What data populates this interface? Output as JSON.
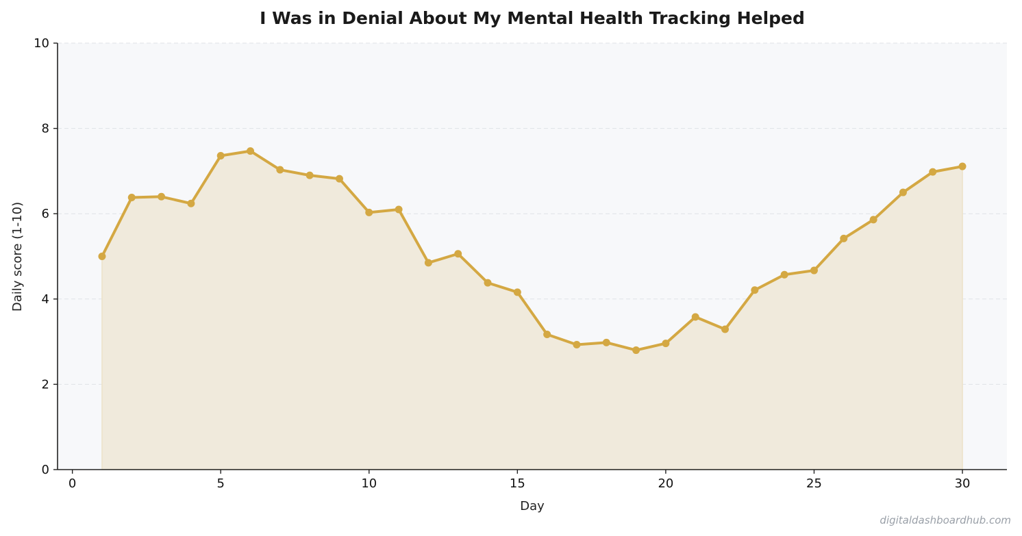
{
  "chart_data": {
    "type": "line",
    "title": "I Was in Denial About My Mental Health  Tracking Helped",
    "xlabel": "Day",
    "ylabel": "Daily score (1-10)",
    "xlim": [
      -0.5,
      31.5
    ],
    "ylim": [
      0,
      10
    ],
    "xticks": [
      0,
      5,
      10,
      15,
      20,
      25,
      30
    ],
    "yticks": [
      0,
      2,
      4,
      6,
      8,
      10
    ],
    "grid": "horizontal-dashed",
    "area_fill": true,
    "colors": {
      "line": "#D4A843",
      "fill": "#F0EADC",
      "plot_background": "#F7F8FA"
    },
    "x": [
      1,
      2,
      3,
      4,
      5,
      6,
      7,
      8,
      9,
      10,
      11,
      12,
      13,
      14,
      15,
      16,
      17,
      18,
      19,
      20,
      21,
      22,
      23,
      24,
      25,
      26,
      27,
      28,
      29,
      30
    ],
    "y": [
      5.0,
      6.38,
      6.4,
      6.24,
      7.36,
      7.47,
      7.03,
      6.9,
      6.82,
      6.03,
      6.1,
      4.85,
      5.06,
      4.38,
      4.16,
      3.17,
      2.93,
      2.98,
      2.8,
      2.96,
      3.58,
      3.29,
      4.21,
      4.57,
      4.67,
      5.42,
      5.86,
      6.5,
      6.98,
      7.11
    ]
  },
  "watermark": "digitaldashboardhub.com"
}
